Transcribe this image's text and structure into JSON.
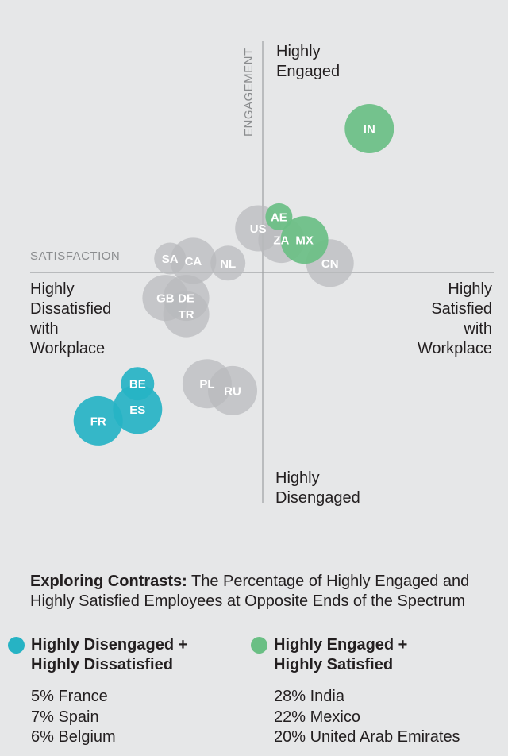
{
  "chart_data": {
    "type": "scatter",
    "xlabel": "SATISFACTION",
    "ylabel": "ENGAGEMENT",
    "quadrant_labels": {
      "top": [
        "Highly",
        "Engaged"
      ],
      "bottom": [
        "Highly",
        "Disengaged"
      ],
      "left": [
        "Highly",
        "Dissatisfied",
        "with",
        "Workplace"
      ],
      "right": [
        "Highly",
        "Satisfied",
        "with",
        "Workplace"
      ]
    },
    "xlim": [
      -10,
      10
    ],
    "ylim": [
      -10,
      10
    ],
    "grid": false,
    "groups": {
      "neutral": "#b9babc",
      "engaged": "#6abf84",
      "disengaged": "#26b3c4"
    },
    "points": [
      {
        "label": "IN",
        "x": 4.6,
        "y": 6.2,
        "r": 31,
        "group": "engaged"
      },
      {
        "label": "US",
        "x": -0.2,
        "y": 1.9,
        "r": 29,
        "group": "neutral"
      },
      {
        "label": "ZA",
        "x": 0.8,
        "y": 1.4,
        "r": 29,
        "group": "neutral"
      },
      {
        "label": "CN",
        "x": 2.9,
        "y": 0.4,
        "r": 30,
        "group": "neutral"
      },
      {
        "label": "AE",
        "x": 0.7,
        "y": 2.4,
        "r": 17,
        "group": "engaged"
      },
      {
        "label": "MX",
        "x": 1.8,
        "y": 1.4,
        "r": 30,
        "group": "engaged"
      },
      {
        "label": "SA",
        "x": -4.0,
        "y": 0.6,
        "r": 20,
        "group": "neutral"
      },
      {
        "label": "CA",
        "x": -3.0,
        "y": 0.5,
        "r": 29,
        "group": "neutral"
      },
      {
        "label": "NL",
        "x": -1.5,
        "y": 0.4,
        "r": 22,
        "group": "neutral"
      },
      {
        "label": "GB",
        "x": -4.2,
        "y": -1.1,
        "r": 29,
        "group": "neutral"
      },
      {
        "label": "DE",
        "x": -3.3,
        "y": -1.1,
        "r": 29,
        "group": "neutral"
      },
      {
        "label": "TR",
        "x": -3.3,
        "y": -1.8,
        "r": 29,
        "group": "neutral"
      },
      {
        "label": "PL",
        "x": -2.4,
        "y": -4.8,
        "r": 31,
        "group": "neutral"
      },
      {
        "label": "RU",
        "x": -1.3,
        "y": -5.1,
        "r": 31,
        "group": "neutral"
      },
      {
        "label": "BE",
        "x": -5.4,
        "y": -4.8,
        "r": 21,
        "group": "disengaged"
      },
      {
        "label": "ES",
        "x": -5.4,
        "y": -5.9,
        "r": 31,
        "group": "disengaged"
      },
      {
        "label": "FR",
        "x": -7.1,
        "y": -6.4,
        "r": 31,
        "group": "disengaged"
      }
    ]
  },
  "headline": {
    "bold": "Exploring Contrasts:",
    "text": " The Percentage of Highly Engaged and Highly Satisfied Employees at Opposite Ends of the Spectrum"
  },
  "legend": {
    "disengaged": {
      "color": "#26b3c4",
      "title_line1": "Highly Disengaged +",
      "title_line2": "Highly Dissatisfied",
      "items": [
        "5% France",
        "7% Spain",
        "6% Belgium"
      ]
    },
    "engaged": {
      "color": "#6abf84",
      "title_line1": "Highly Engaged +",
      "title_line2": "Highly Satisfied",
      "items": [
        "28% India",
        "22% Mexico",
        "20% United Arab Emirates"
      ]
    }
  }
}
